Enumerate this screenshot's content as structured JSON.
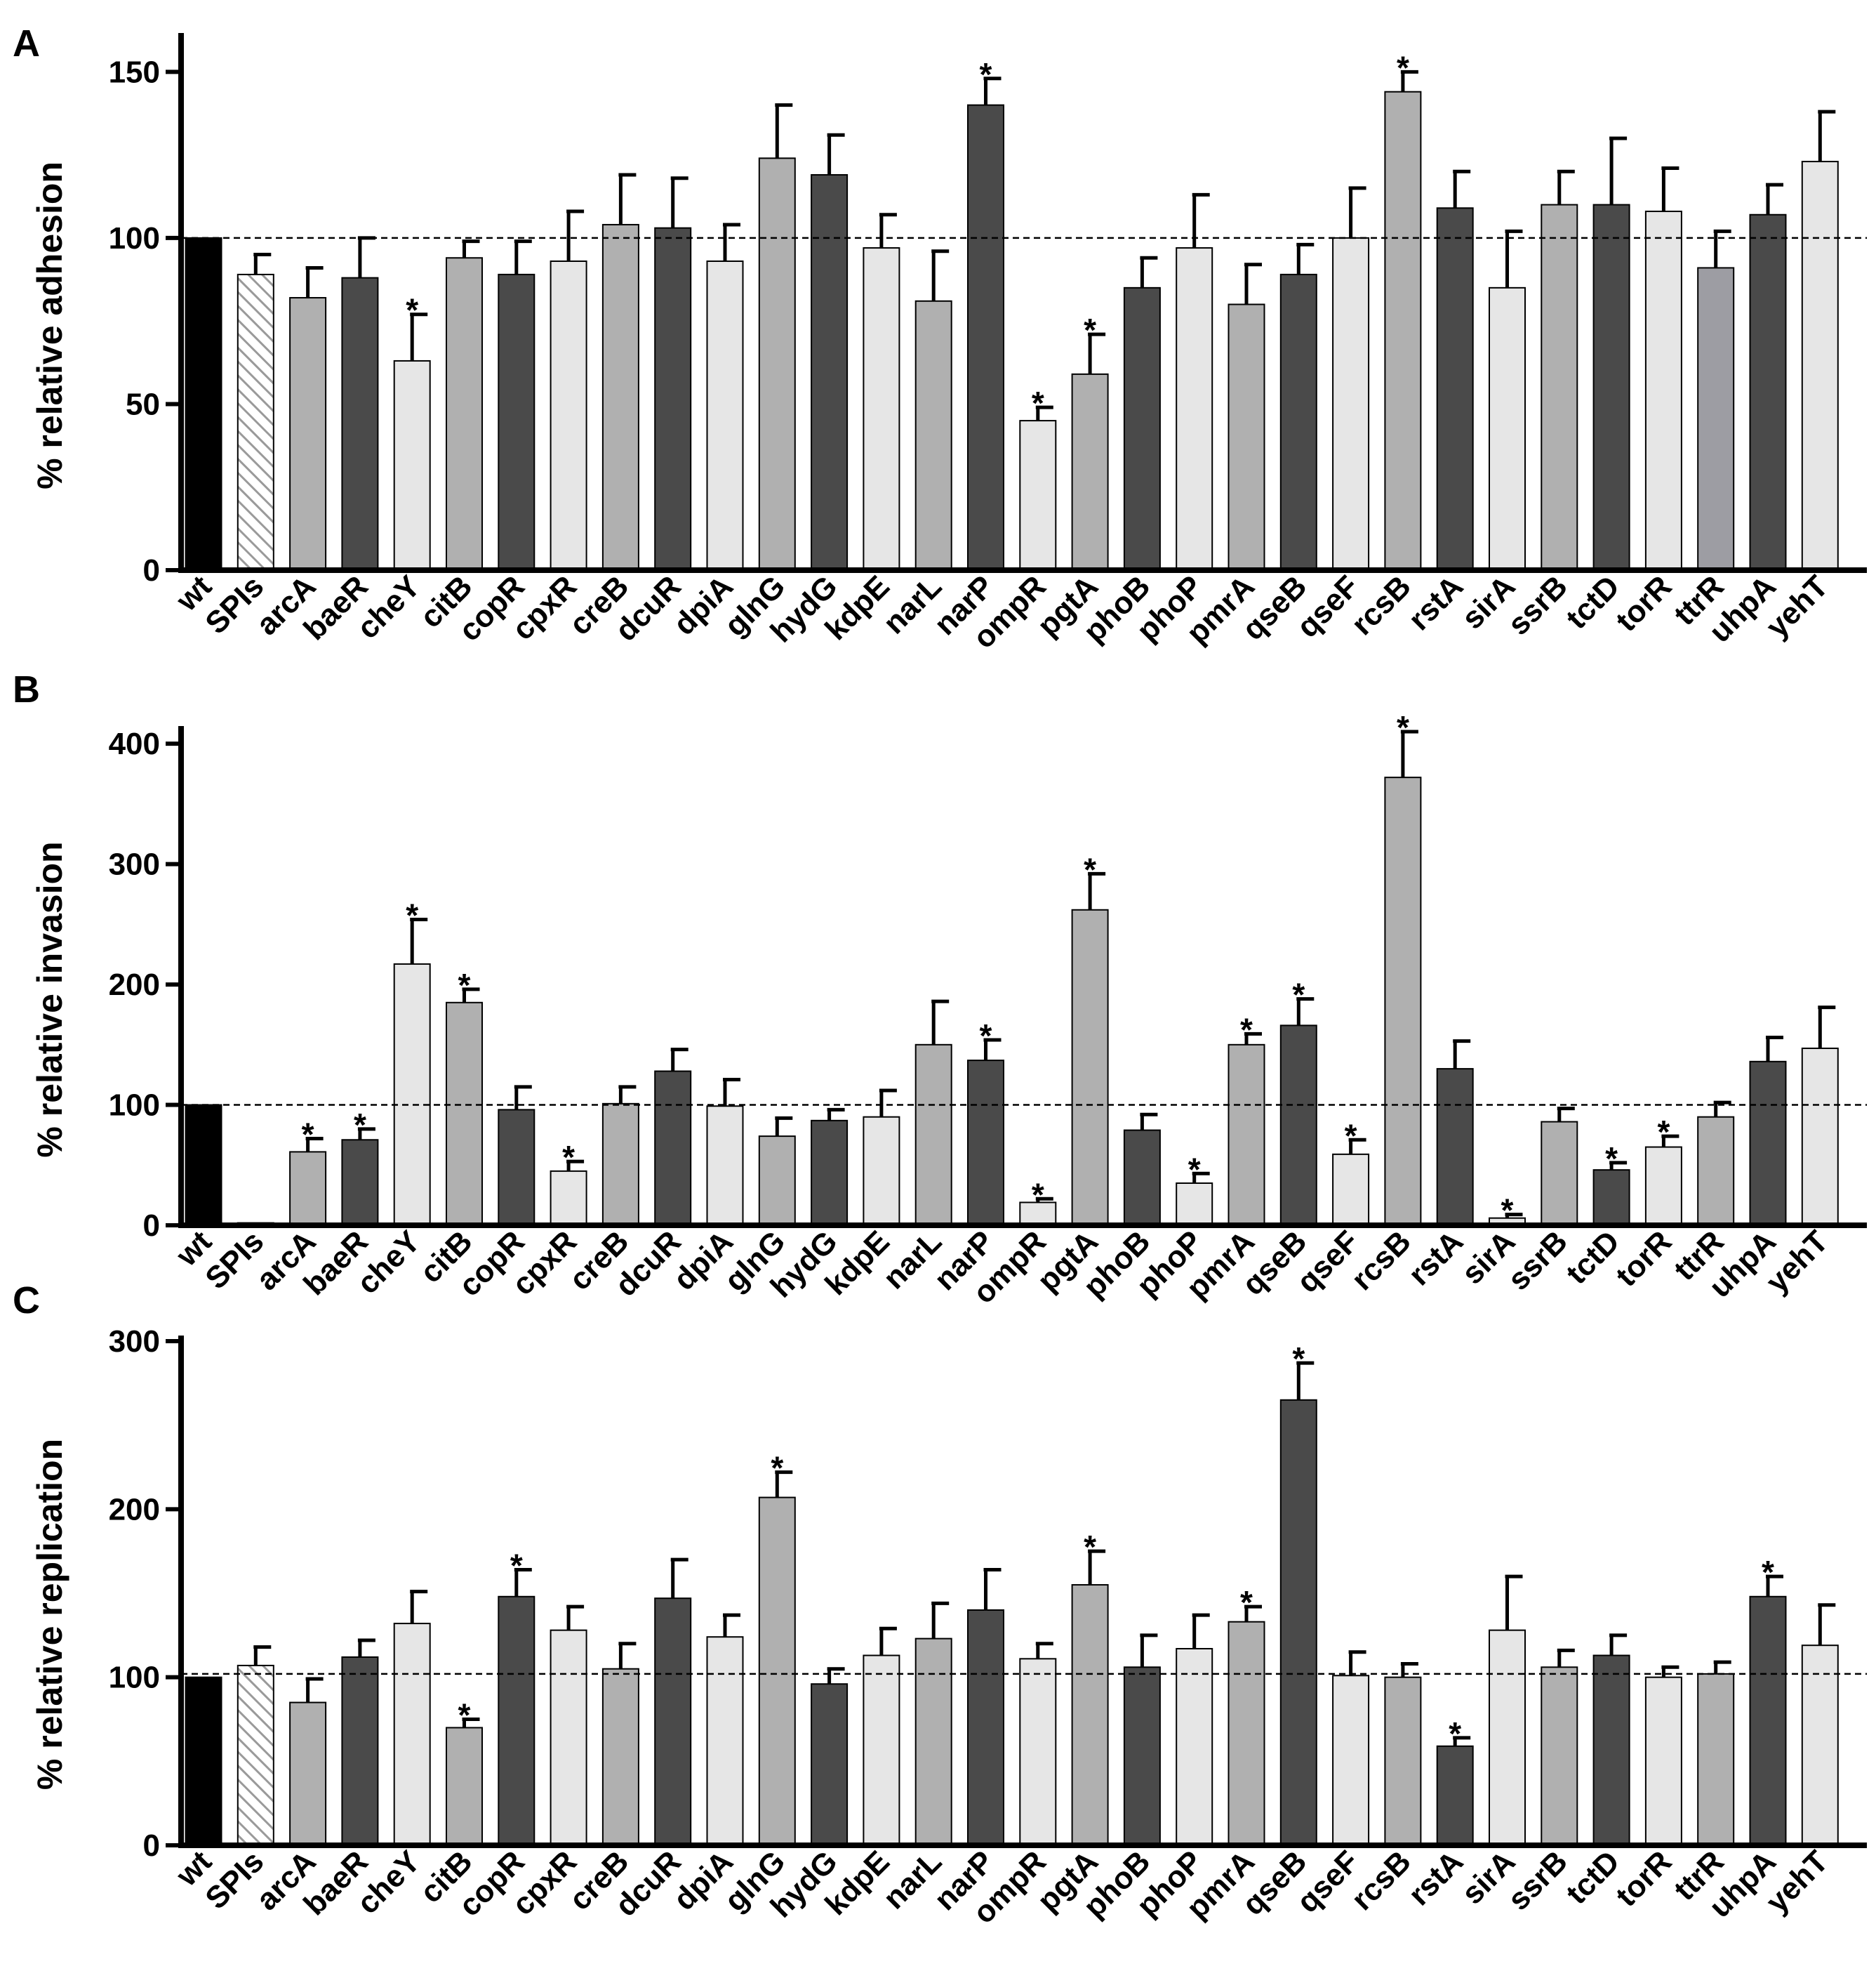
{
  "figure": {
    "panels": [
      "A",
      "B",
      "C"
    ]
  },
  "colors": {
    "black": "#000000",
    "dark": "#4a4a4a",
    "mid": "#b0b0b0",
    "light": "#e6e6e6",
    "ttr": "#9d9da3",
    "hatch": "#ffffff"
  },
  "chart_data": [
    {
      "type": "bar",
      "panel": "A",
      "title": "",
      "xlabel": "",
      "ylabel": "% relative adhesion",
      "ylim": [
        0,
        160
      ],
      "yticks": [
        0,
        50,
        100,
        150
      ],
      "reference_line": 100,
      "categories": [
        "wt",
        "SPIs",
        "arcA",
        "baeR",
        "cheY",
        "citB",
        "copR",
        "cpxR",
        "creB",
        "dcuR",
        "dpiA",
        "glnG",
        "hydG",
        "kdpE",
        "narL",
        "narP",
        "ompR",
        "pgtA",
        "phoB",
        "phoP",
        "pmrA",
        "qseB",
        "qseF",
        "rcsB",
        "rstA",
        "sirA",
        "ssrB",
        "tctD",
        "torR",
        "ttrR",
        "uhpA",
        "yehT"
      ],
      "values": [
        100,
        89,
        82,
        88,
        63,
        94,
        89,
        93,
        104,
        103,
        93,
        124,
        119,
        97,
        81,
        140,
        45,
        59,
        85,
        97,
        80,
        89,
        100,
        144,
        109,
        85,
        110,
        110,
        108,
        91,
        107,
        123
      ],
      "errors": [
        0,
        6,
        9,
        12,
        14,
        5,
        10,
        15,
        15,
        15,
        11,
        16,
        12,
        10,
        15,
        8,
        4,
        12,
        9,
        16,
        12,
        9,
        15,
        6,
        11,
        17,
        10,
        20,
        13,
        11,
        9,
        15
      ],
      "significant": [
        "ompR",
        "pgtA",
        "cheY",
        "narP",
        "rcsB"
      ],
      "fills": [
        "black",
        "hatch",
        "mid",
        "dark",
        "light",
        "mid",
        "dark",
        "light",
        "mid",
        "dark",
        "light",
        "mid",
        "dark",
        "light",
        "mid",
        "dark",
        "light",
        "mid",
        "dark",
        "light",
        "mid",
        "dark",
        "light",
        "mid",
        "dark",
        "light",
        "mid",
        "dark",
        "light",
        "ttr",
        "dark",
        "light"
      ]
    },
    {
      "type": "bar",
      "panel": "B",
      "title": "",
      "xlabel": "",
      "ylabel": "% relative invasion",
      "ylim": [
        0,
        410
      ],
      "yticks": [
        0,
        100,
        200,
        300,
        400
      ],
      "reference_line": 100,
      "categories": [
        "wt",
        "SPIs",
        "arcA",
        "baeR",
        "cheY",
        "citB",
        "copR",
        "cpxR",
        "creB",
        "dcuR",
        "dpiA",
        "glnG",
        "hydG",
        "kdpE",
        "narL",
        "narP",
        "ompR",
        "pgtA",
        "phoB",
        "phoP",
        "pmrA",
        "qseB",
        "qseF",
        "rcsB",
        "rstA",
        "sirA",
        "ssrB",
        "tctD",
        "torR",
        "ttrR",
        "uhpA",
        "yehT"
      ],
      "values": [
        100,
        2,
        61,
        71,
        217,
        185,
        96,
        45,
        101,
        128,
        99,
        74,
        87,
        90,
        150,
        137,
        19,
        262,
        79,
        35,
        150,
        166,
        59,
        372,
        130,
        6,
        86,
        46,
        65,
        90,
        136,
        147
      ],
      "errors": [
        0,
        0,
        11,
        9,
        37,
        11,
        19,
        8,
        14,
        18,
        22,
        15,
        9,
        22,
        36,
        17,
        3,
        30,
        13,
        8,
        9,
        22,
        12,
        38,
        23,
        3,
        11,
        6,
        9,
        12,
        20,
        34
      ],
      "significant": [
        "arcA",
        "baeR",
        "cheY",
        "citB",
        "cpxR",
        "narP",
        "ompR",
        "pgtA",
        "phoP",
        "pmrA",
        "qseB",
        "qseF",
        "rcsB",
        "sirA",
        "tctD",
        "torR"
      ],
      "fills": [
        "black",
        "light",
        "mid",
        "dark",
        "light",
        "mid",
        "dark",
        "light",
        "mid",
        "dark",
        "light",
        "mid",
        "dark",
        "light",
        "mid",
        "dark",
        "light",
        "mid",
        "dark",
        "light",
        "mid",
        "dark",
        "light",
        "mid",
        "dark",
        "light",
        "mid",
        "dark",
        "light",
        "mid",
        "dark",
        "light"
      ]
    },
    {
      "type": "bar",
      "panel": "C",
      "title": "",
      "xlabel": "",
      "ylabel": "% relative  replication",
      "ylim": [
        0,
        300
      ],
      "yticks": [
        0,
        100,
        200,
        300
      ],
      "reference_line": 102,
      "categories": [
        "wt",
        "SPIs",
        "arcA",
        "baeR",
        "cheY",
        "citB",
        "copR",
        "cpxR",
        "creB",
        "dcuR",
        "dpiA",
        "glnG",
        "hydG",
        "kdpE",
        "narL",
        "narP",
        "ompR",
        "pgtA",
        "phoB",
        "phoP",
        "pmrA",
        "qseB",
        "qseF",
        "rcsB",
        "rstA",
        "sirA",
        "ssrB",
        "tctD",
        "torR",
        "ttrR",
        "uhpA",
        "yehT"
      ],
      "values": [
        100,
        107,
        85,
        112,
        132,
        70,
        148,
        128,
        105,
        147,
        124,
        207,
        96,
        113,
        123,
        140,
        111,
        155,
        106,
        117,
        133,
        265,
        101,
        100,
        59,
        128,
        106,
        113,
        100,
        102,
        148,
        119
      ],
      "errors": [
        0,
        11,
        14,
        10,
        19,
        5,
        16,
        14,
        15,
        23,
        13,
        15,
        9,
        16,
        21,
        24,
        9,
        20,
        19,
        20,
        9,
        22,
        14,
        8,
        5,
        32,
        10,
        12,
        6,
        7,
        12,
        24
      ],
      "significant": [
        "citB",
        "copR",
        "glnG",
        "pgtA",
        "pmrA",
        "qseB",
        "rstA",
        "uhpA"
      ],
      "fills": [
        "black",
        "hatch",
        "mid",
        "dark",
        "light",
        "mid",
        "dark",
        "light",
        "mid",
        "dark",
        "light",
        "mid",
        "dark",
        "light",
        "mid",
        "dark",
        "light",
        "mid",
        "dark",
        "light",
        "mid",
        "dark",
        "light",
        "mid",
        "dark",
        "light",
        "mid",
        "dark",
        "light",
        "mid",
        "dark",
        "light"
      ]
    }
  ]
}
